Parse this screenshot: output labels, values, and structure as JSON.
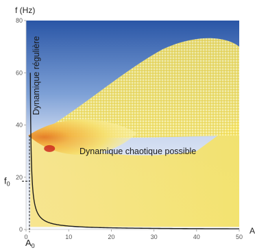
{
  "chart_data": {
    "type": "heatmap",
    "title": "",
    "xlabel": "A",
    "ylabel": "f (Hz)",
    "xlim": [
      0,
      50
    ],
    "ylim": [
      0,
      80
    ],
    "x_ticks": [
      "0",
      "10",
      "20",
      "30",
      "40",
      "50"
    ],
    "y_ticks": [
      "0",
      "20",
      "40",
      "60",
      "80"
    ],
    "markers": {
      "x_label": "A",
      "x_sub": "0",
      "y_label": "f",
      "y_sub": "0",
      "A0": 0.8,
      "f0": 18.5
    },
    "regions": {
      "regular": "Dynamique régulière",
      "chaotic": "Dynamique chaotique possible"
    },
    "boundary_curve": {
      "description": "f = k / (A - A0)",
      "A0": 0.8,
      "k": 12,
      "A_range": [
        1.0,
        50
      ]
    },
    "colors": {
      "regular_blue": "#2f5aa8",
      "chaotic_yellow": "#f5e66a",
      "chaotic_orange": "#e89a2a",
      "chaotic_red": "#cc2a1e",
      "curve": "#1a1a1a"
    }
  }
}
